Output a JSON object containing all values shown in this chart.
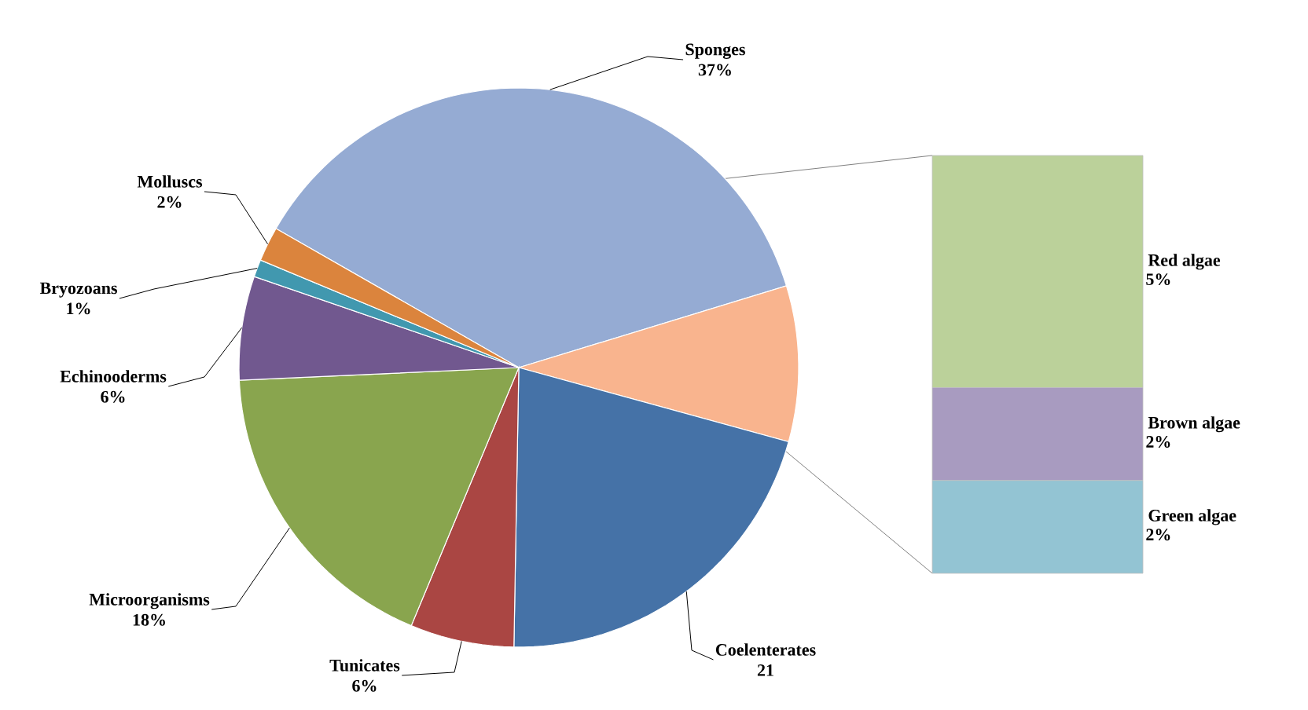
{
  "chart_data": [
    {
      "type": "pie",
      "categories": [
        "Sponges",
        null,
        "Coelenterates",
        "Tunicates",
        "Microorganisms",
        "Echinooderms",
        "Bryozoans",
        "Molluscs"
      ],
      "values": [
        37,
        9,
        21,
        6,
        18,
        6,
        1,
        2
      ],
      "value_labels": [
        "37%",
        null,
        "21",
        "6%",
        "18%",
        "6%",
        "1%",
        "2%"
      ],
      "colors": [
        "#95abd3",
        "#f9b48e",
        "#4572a7",
        "#aa4643",
        "#89a54e",
        "#71588f",
        "#4198af",
        "#db843d"
      ]
    },
    {
      "type": "bar",
      "stacked": true,
      "categories": [
        null
      ],
      "series": [
        {
          "name": "Green algae",
          "color": "#93c4d3",
          "values": [
            2
          ],
          "value_labels": [
            "2%"
          ]
        },
        {
          "name": "Brown algae",
          "color": "#a89bc0",
          "values": [
            2
          ],
          "value_labels": [
            "2%"
          ]
        },
        {
          "name": "Red algae",
          "color": "#bbd19a",
          "values": [
            5
          ],
          "value_labels": [
            "5%"
          ]
        }
      ]
    }
  ]
}
